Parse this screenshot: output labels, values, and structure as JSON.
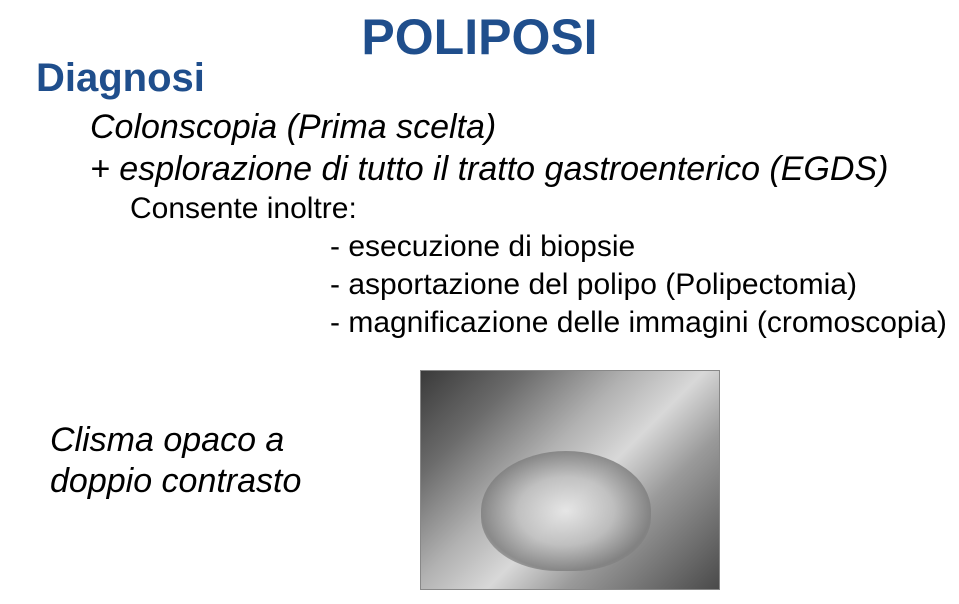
{
  "title": "POLIPOSI",
  "heading": "Diagnosi",
  "line1": "Colonscopia  (Prima scelta)",
  "line2": "+ esplorazione di tutto il tratto gastroenterico (EGDS)",
  "consent": "Consente inoltre:",
  "b1": "- esecuzione di biopsie",
  "b2": "- asportazione del polipo (Polipectomia)",
  "b3": "- magnificazione delle immagini  (cromoscopia)",
  "footer1": "Clisma opaco a",
  "footer2": "doppio contrasto",
  "colors": {
    "accent": "#1f4e8c",
    "text": "#000000",
    "background": "#ffffff"
  },
  "image": {
    "description": "radiographic-xray-double-contrast-enema",
    "grayscale": true
  }
}
